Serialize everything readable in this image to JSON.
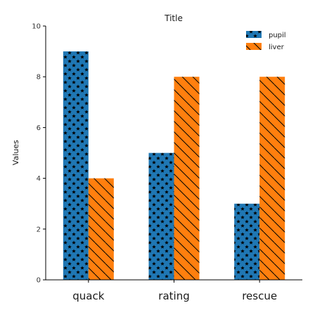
{
  "chart_data": {
    "type": "bar",
    "title": "Title",
    "xlabel": "",
    "ylabel": "Values",
    "ylim": [
      0,
      10
    ],
    "yticks": [
      0,
      2,
      4,
      6,
      8,
      10
    ],
    "categories": [
      "quack",
      "rating",
      "rescue"
    ],
    "series": [
      {
        "name": "pupil",
        "values": [
          9,
          5,
          3
        ],
        "color": "#1f77b4",
        "hatch": "stars"
      },
      {
        "name": "liver",
        "values": [
          4,
          8,
          8
        ],
        "color": "#ff7f0e",
        "hatch": "diagonal"
      }
    ],
    "legend_position": "top-right",
    "grid": false
  }
}
